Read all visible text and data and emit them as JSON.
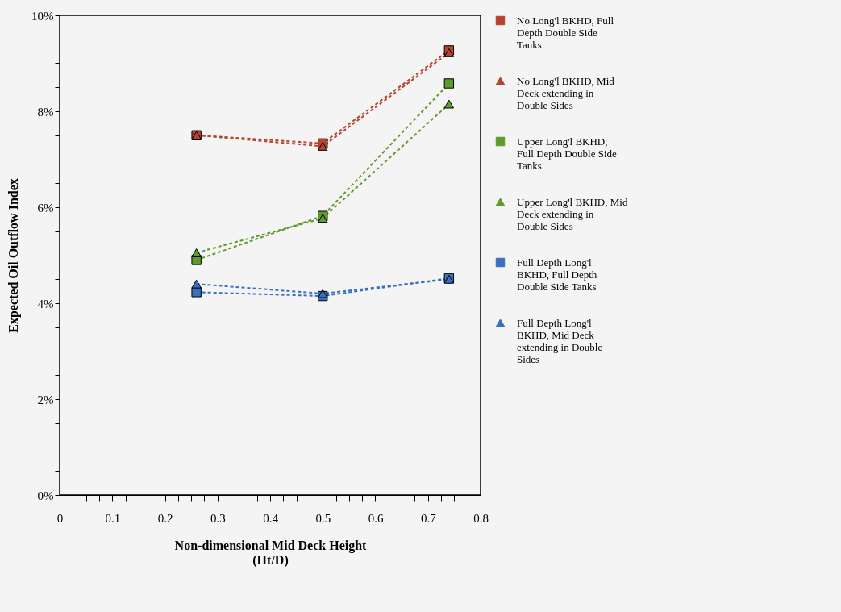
{
  "chart_data": {
    "type": "line",
    "xlabel": "Non-dimensional Mid Deck Height\n(Ht/D)",
    "ylabel": "Expected Oil Outflow Index",
    "xlim": [
      0,
      0.8
    ],
    "ylim": [
      0,
      10
    ],
    "xticks": [
      0,
      {
        "value": 0.025,
        "label": null
      },
      {
        "value": 0.05,
        "label": null
      },
      {
        "value": 0.075,
        "label": null
      },
      0.1,
      {
        "value": 0.125,
        "label": null
      },
      {
        "value": 0.15,
        "label": null
      },
      {
        "value": 0.175,
        "label": null
      },
      0.2,
      {
        "value": 0.225,
        "label": null
      },
      {
        "value": 0.25,
        "label": null
      },
      {
        "value": 0.275,
        "label": null
      },
      0.3,
      {
        "value": 0.325,
        "label": null
      },
      {
        "value": 0.35,
        "label": null
      },
      {
        "value": 0.375,
        "label": null
      },
      0.4,
      {
        "value": 0.425,
        "label": null
      },
      {
        "value": 0.45,
        "label": null
      },
      {
        "value": 0.475,
        "label": null
      },
      0.5,
      {
        "value": 0.525,
        "label": null
      },
      {
        "value": 0.55,
        "label": null
      },
      {
        "value": 0.575,
        "label": null
      },
      0.6,
      {
        "value": 0.625,
        "label": null
      },
      {
        "value": 0.65,
        "label": null
      },
      {
        "value": 0.675,
        "label": null
      },
      0.7,
      {
        "value": 0.725,
        "label": null
      },
      {
        "value": 0.75,
        "label": null
      },
      {
        "value": 0.775,
        "label": null
      },
      0.8
    ],
    "yticks": [
      {
        "value": 0,
        "label": "0%"
      },
      {
        "value": 0.5,
        "label": null
      },
      {
        "value": 1,
        "label": null
      },
      {
        "value": 1.5,
        "label": null
      },
      {
        "value": 2,
        "label": "2%"
      },
      {
        "value": 2.5,
        "label": null
      },
      {
        "value": 3,
        "label": null
      },
      {
        "value": 3.5,
        "label": null
      },
      {
        "value": 4,
        "label": "4%"
      },
      {
        "value": 4.5,
        "label": null
      },
      {
        "value": 5,
        "label": null
      },
      {
        "value": 5.5,
        "label": null
      },
      {
        "value": 6,
        "label": "6%"
      },
      {
        "value": 6.5,
        "label": null
      },
      {
        "value": 7,
        "label": null
      },
      {
        "value": 7.5,
        "label": null
      },
      {
        "value": 8,
        "label": "8%"
      },
      {
        "value": 8.5,
        "label": null
      },
      {
        "value": 9,
        "label": null
      },
      {
        "value": 9.5,
        "label": null
      },
      {
        "value": 10,
        "label": "10%"
      }
    ],
    "x": [
      0.26,
      0.5,
      0.74
    ],
    "grid": false,
    "legend": "right",
    "line_style": "dashed",
    "series": [
      {
        "name": "No Long'l BKHD, Full Depth Double Side Tanks",
        "color": "#b5432f",
        "marker": "square",
        "values": [
          7.5,
          7.33,
          9.27
        ]
      },
      {
        "name": "No Long'l BKHD, Mid Deck extending in Double Sides",
        "color": "#b5432f",
        "marker": "triangle",
        "values": [
          7.5,
          7.27,
          9.22
        ]
      },
      {
        "name": "Upper Long'l BKHD, Full Depth Double Side Tanks",
        "color": "#5e9a2c",
        "marker": "square",
        "values": [
          4.9,
          5.82,
          8.58
        ]
      },
      {
        "name": "Upper Long'l BKHD, Mid Deck extending in Double Sides",
        "color": "#5e9a2c",
        "marker": "triangle",
        "values": [
          5.05,
          5.77,
          8.15
        ]
      },
      {
        "name": "Full Depth Long'l BKHD, Full Depth Double Side Tanks",
        "color": "#3a6fc0",
        "marker": "square",
        "values": [
          4.23,
          4.15,
          4.52
        ]
      },
      {
        "name": "Full Depth Long'l BKHD, Mid Deck extending in Double Sides",
        "color": "#3a6fc0",
        "marker": "triangle",
        "values": [
          4.4,
          4.2,
          4.5
        ]
      }
    ]
  }
}
